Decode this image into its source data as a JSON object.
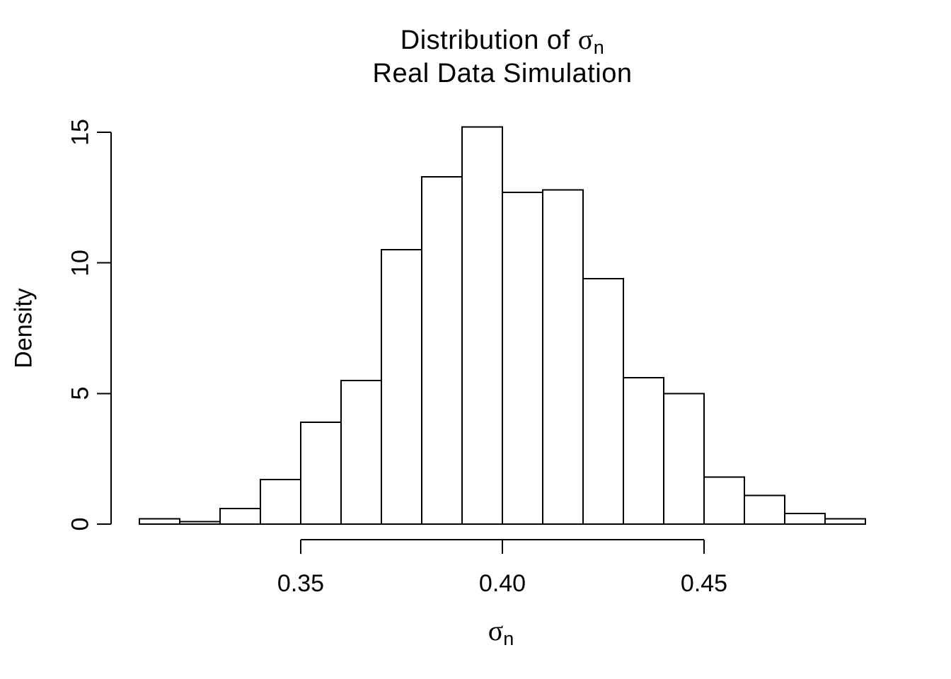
{
  "chart_data": {
    "type": "bar",
    "subtype": "histogram",
    "title_parts": {
      "prefix": "Distribution of ",
      "symbol": "σ",
      "subscript": "n"
    },
    "subtitle": "Real Data Simulation",
    "xlabel_parts": {
      "symbol": "σ",
      "subscript": "n"
    },
    "ylabel": "Density",
    "bin_width": 0.01,
    "bin_edges": [
      0.31,
      0.32,
      0.33,
      0.34,
      0.35,
      0.36,
      0.37,
      0.38,
      0.39,
      0.4,
      0.41,
      0.42,
      0.43,
      0.44,
      0.45,
      0.46,
      0.47,
      0.48,
      0.49
    ],
    "densities": [
      0.2,
      0.1,
      0.6,
      1.7,
      3.9,
      5.5,
      10.5,
      13.3,
      15.2,
      12.7,
      12.8,
      9.4,
      5.6,
      5.0,
      1.8,
      1.1,
      0.4,
      0.2
    ],
    "x_ticks": [
      {
        "value": 0.35,
        "label": "0.35"
      },
      {
        "value": 0.4,
        "label": "0.40"
      },
      {
        "value": 0.45,
        "label": "0.45"
      }
    ],
    "y_ticks": [
      {
        "value": 0,
        "label": "0"
      },
      {
        "value": 5,
        "label": "5"
      },
      {
        "value": 10,
        "label": "10"
      },
      {
        "value": 15,
        "label": "15"
      }
    ],
    "xlim": [
      0.31,
      0.49
    ],
    "ylim": [
      0,
      15.2
    ],
    "grid": false,
    "legend": false,
    "bar_fill": "#ffffff",
    "bar_stroke": "#000000",
    "axis_color": "#000000"
  }
}
